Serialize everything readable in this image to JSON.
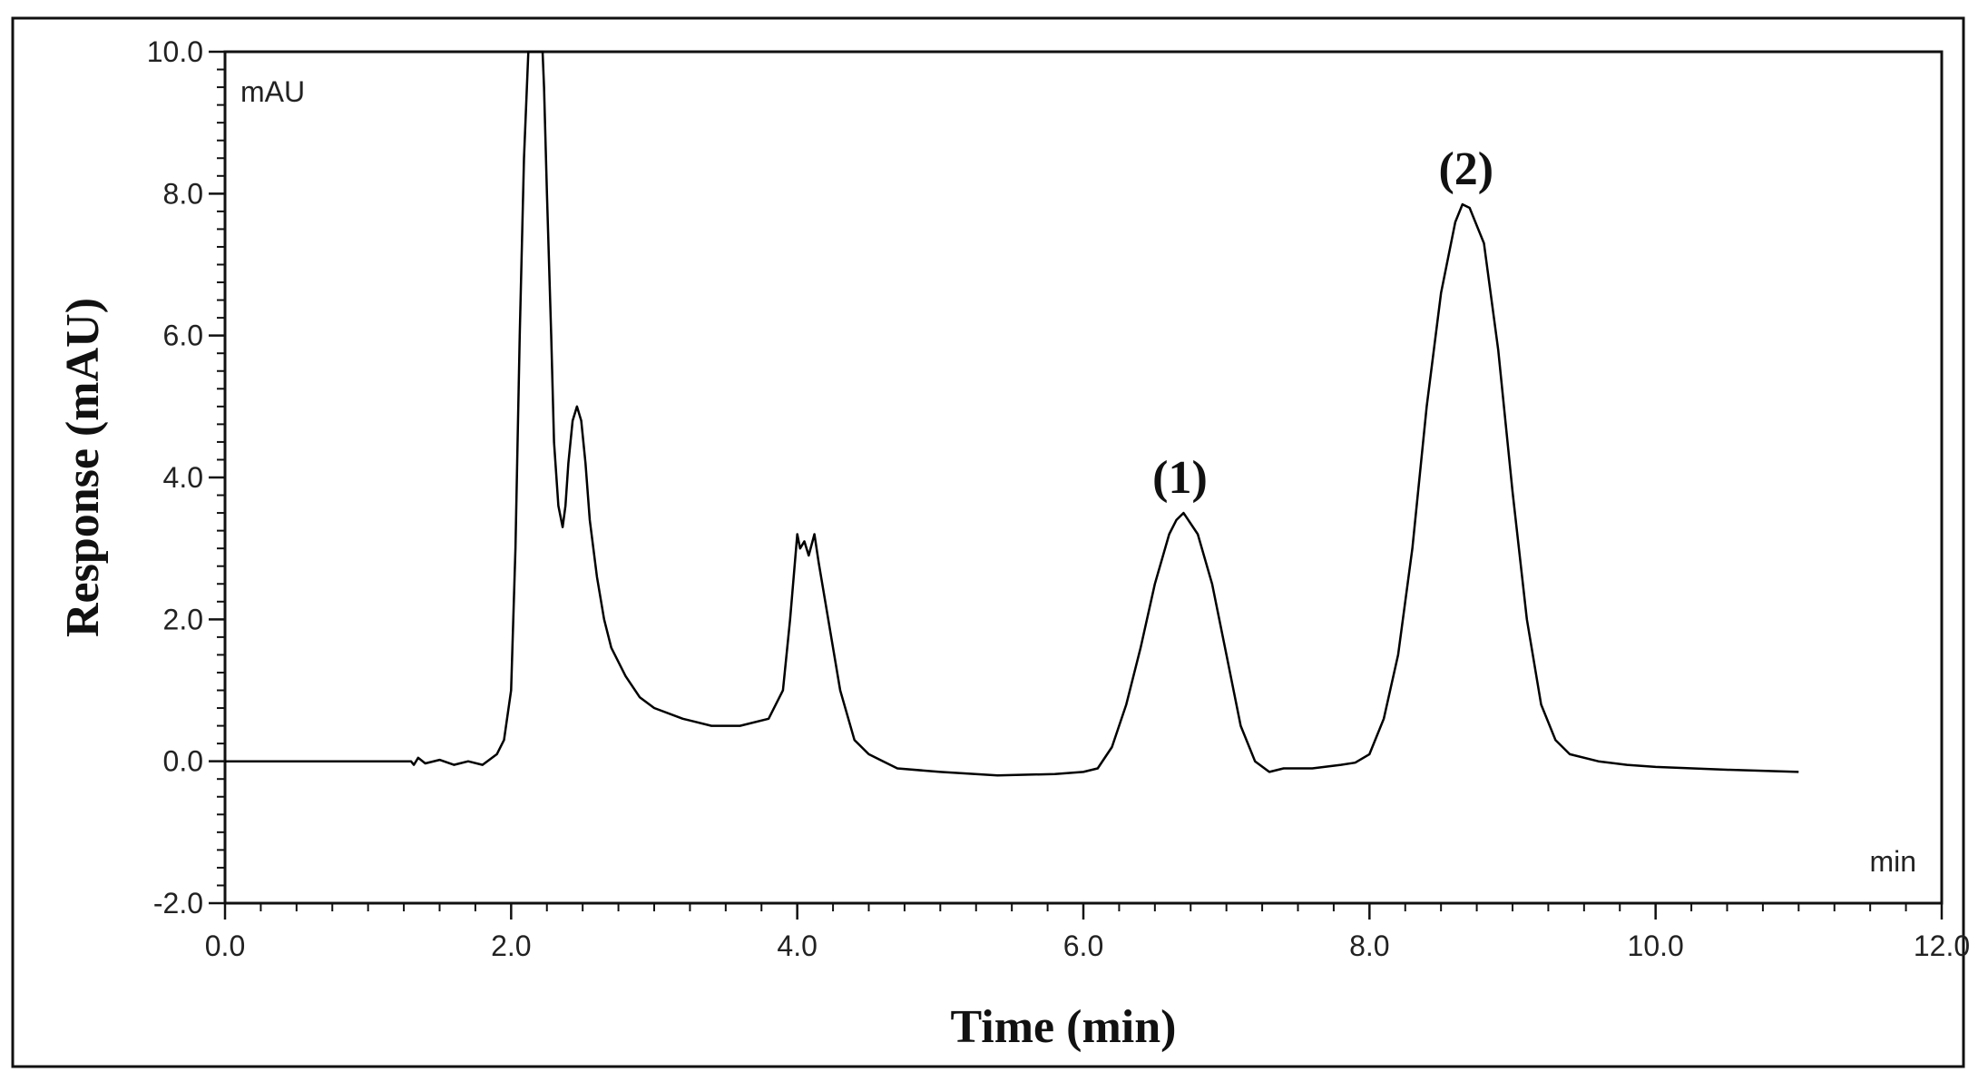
{
  "chart_data": {
    "type": "line",
    "title": "",
    "xlabel": "Time (min)",
    "ylabel": "Response (mAU)",
    "x_unit": "min",
    "y_unit": "mAU",
    "xlim": [
      0,
      12
    ],
    "ylim": [
      -2,
      10
    ],
    "x_ticks": [
      0,
      2,
      4,
      6,
      8,
      10,
      12
    ],
    "x_tick_labels": [
      "0.0",
      "2.0",
      "4.0",
      "6.0",
      "8.0",
      "10.0",
      "12.0"
    ],
    "y_ticks": [
      -2,
      0,
      2,
      4,
      6,
      8,
      10
    ],
    "y_tick_labels": [
      "-2.0",
      "0.0",
      "2.0",
      "4.0",
      "6.0",
      "8.0",
      "10.0"
    ],
    "grid": false,
    "line_color": "#000000",
    "series": [
      {
        "x": [
          0.0,
          1.3,
          1.32,
          1.35,
          1.4,
          1.5,
          1.6,
          1.7,
          1.8,
          1.9,
          1.95,
          2.0,
          2.03,
          2.06,
          2.09,
          2.12,
          2.14,
          2.15,
          2.16,
          2.2,
          2.22,
          2.23,
          2.25,
          2.28,
          2.3,
          2.33,
          2.36,
          2.38,
          2.4,
          2.43,
          2.46,
          2.49,
          2.52,
          2.55,
          2.6,
          2.65,
          2.7,
          2.8,
          2.9,
          3.0,
          3.2,
          3.4,
          3.6,
          3.8,
          3.9,
          3.95,
          4.0,
          4.02,
          4.05,
          4.08,
          4.12,
          4.15,
          4.2,
          4.3,
          4.4,
          4.5,
          4.6,
          4.7,
          5.0,
          5.4,
          5.8,
          6.0,
          6.1,
          6.2,
          6.3,
          6.4,
          6.5,
          6.6,
          6.65,
          6.7,
          6.8,
          6.9,
          7.0,
          7.1,
          7.2,
          7.3,
          7.4,
          7.6,
          7.8,
          7.9,
          8.0,
          8.1,
          8.2,
          8.3,
          8.4,
          8.5,
          8.6,
          8.65,
          8.7,
          8.8,
          8.9,
          9.0,
          9.1,
          9.2,
          9.3,
          9.4,
          9.6,
          9.8,
          10.0,
          10.5,
          11.0
        ],
        "y": [
          0.0,
          0.0,
          -0.05,
          0.05,
          -0.03,
          0.02,
          -0.05,
          0.0,
          -0.05,
          0.1,
          0.3,
          1.0,
          3.0,
          6.0,
          8.5,
          10.0,
          10.0,
          10.0,
          10.0,
          10.0,
          10.0,
          9.5,
          8.0,
          6.0,
          4.5,
          3.6,
          3.3,
          3.6,
          4.2,
          4.8,
          5.0,
          4.8,
          4.2,
          3.4,
          2.6,
          2.0,
          1.6,
          1.2,
          0.9,
          0.75,
          0.6,
          0.5,
          0.5,
          0.6,
          1.0,
          2.0,
          3.2,
          3.0,
          3.1,
          2.9,
          3.2,
          2.8,
          2.2,
          1.0,
          0.3,
          0.1,
          0.0,
          -0.1,
          -0.15,
          -0.2,
          -0.18,
          -0.15,
          -0.1,
          0.2,
          0.8,
          1.6,
          2.5,
          3.2,
          3.4,
          3.5,
          3.2,
          2.5,
          1.5,
          0.5,
          0.0,
          -0.15,
          -0.1,
          -0.1,
          -0.05,
          -0.02,
          0.1,
          0.6,
          1.5,
          3.0,
          5.0,
          6.6,
          7.6,
          7.85,
          7.8,
          7.3,
          5.8,
          3.8,
          2.0,
          0.8,
          0.3,
          0.1,
          0.0,
          -0.05,
          -0.08,
          -0.12,
          -0.15
        ]
      }
    ],
    "annotations": [
      {
        "text": "(1)",
        "x": 6.65,
        "y": 3.5
      },
      {
        "text": "(2)",
        "x": 8.65,
        "y": 7.85
      }
    ]
  }
}
